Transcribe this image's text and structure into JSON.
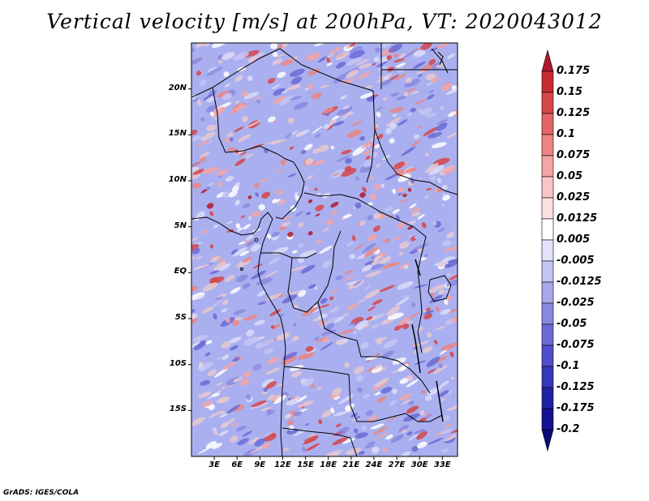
{
  "title": "Vertical velocity [m/s] at 200hPa, VT: 2020043012",
  "footer": "GrADS: IGES/COLA",
  "lat_labels": [
    "20N",
    "15N",
    "10N",
    "5N",
    "EQ",
    "5S",
    "10S",
    "15S"
  ],
  "lat_values": [
    20,
    15,
    10,
    5,
    0,
    -5,
    -10,
    -15
  ],
  "lon_labels": [
    "3E",
    "6E",
    "9E",
    "12E",
    "15E",
    "18E",
    "21E",
    "24E",
    "27E",
    "30E",
    "33E"
  ],
  "lon_values": [
    3,
    6,
    9,
    12,
    15,
    18,
    21,
    24,
    27,
    30,
    33
  ],
  "extent": {
    "lon_min": 0,
    "lon_max": 35,
    "lat_min": -20,
    "lat_max": 25
  },
  "colorbar": {
    "labels": [
      "0.175",
      "0.15",
      "0.125",
      "0.1",
      "0.075",
      "0.05",
      "0.025",
      "0.0125",
      "0.005",
      "-0.005",
      "-0.0125",
      "-0.025",
      "-0.05",
      "-0.075",
      "-0.1",
      "-0.125",
      "-0.175",
      "-0.2"
    ],
    "colors": [
      "#b2172b",
      "#c62c32",
      "#d6474a",
      "#e16566",
      "#eb8584",
      "#f3a5a4",
      "#f9c4c4",
      "#fde0e0",
      "#ffffff",
      "#e2e2fb",
      "#c5c5f3",
      "#a7a7eb",
      "#8989e1",
      "#6b6bd6",
      "#4f4fcb",
      "#3737ba",
      "#2121a6",
      "#121290",
      "#0a0a78"
    ]
  }
}
